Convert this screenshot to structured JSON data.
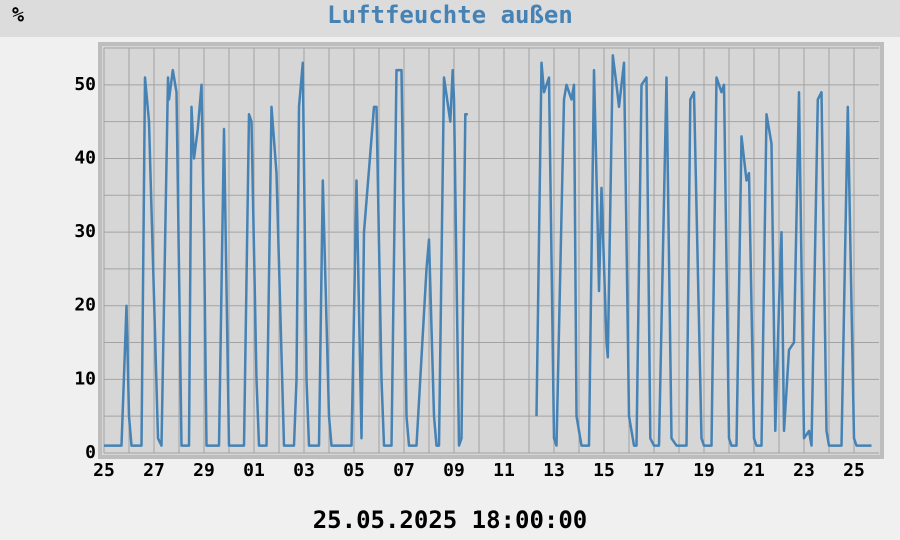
{
  "chart_data": {
    "type": "line",
    "title": "Luftfeuchte außen",
    "y_unit_label": "%",
    "x_label": "25.05.2025 18:00:00",
    "xlim": [
      0,
      31
    ],
    "ylim": [
      0,
      55
    ],
    "xticks": [
      {
        "value": 0,
        "label": "25"
      },
      {
        "value": 2,
        "label": "27"
      },
      {
        "value": 4,
        "label": "29"
      },
      {
        "value": 6,
        "label": "01"
      },
      {
        "value": 8,
        "label": "03"
      },
      {
        "value": 10,
        "label": "05"
      },
      {
        "value": 12,
        "label": "07"
      },
      {
        "value": 14,
        "label": "09"
      },
      {
        "value": 16,
        "label": "11"
      },
      {
        "value": 18,
        "label": "13"
      },
      {
        "value": 20,
        "label": "15"
      },
      {
        "value": 22,
        "label": "17"
      },
      {
        "value": 24,
        "label": "19"
      },
      {
        "value": 26,
        "label": "21"
      },
      {
        "value": 28,
        "label": "23"
      },
      {
        "value": 30,
        "label": "25"
      }
    ],
    "xminor": [
      1,
      3,
      5,
      7,
      9,
      11,
      13,
      15,
      17,
      19,
      21,
      23,
      25,
      27,
      29
    ],
    "yticks": [
      0,
      10,
      20,
      30,
      40,
      50
    ],
    "yminor": [
      5,
      15,
      25,
      35,
      45,
      55
    ],
    "grid": true,
    "series": [
      {
        "color": "#4682b4",
        "x": [
          0,
          0.7,
          0.9,
          1.0,
          1.1,
          1.5,
          1.64,
          1.8,
          2.16,
          2.3,
          2.56,
          2.6,
          2.75,
          2.9,
          3.1,
          3.4,
          3.5,
          3.6,
          3.75,
          3.9,
          4.0,
          4.1,
          4.6,
          4.8,
          5.0,
          5.6,
          5.8,
          5.9,
          6.1,
          6.2,
          6.5,
          6.7,
          6.9,
          7.2,
          7.6,
          7.7,
          7.8,
          7.95,
          8.1,
          8.2,
          8.6,
          8.75,
          9.0,
          9.1,
          9.9,
          10.1,
          10.3,
          10.4,
          10.8,
          10.9,
          11.1,
          11.2,
          11.5,
          11.7,
          11.9,
          12.1,
          12.2,
          12.5,
          12.9,
          13.0,
          13.2,
          13.3,
          13.4,
          13.6,
          13.85,
          13.95,
          14.0,
          14.2,
          14.3,
          14.45,
          14.55,
          16.0,
          17.3,
          17.5,
          17.6,
          17.8,
          18.0,
          18.1,
          18.4,
          18.5,
          18.7,
          18.8,
          18.9,
          19.1,
          19.4,
          19.6,
          19.75,
          19.8,
          19.9,
          20.1,
          20.15,
          20.35,
          20.5,
          20.6,
          20.8,
          21.0,
          21.2,
          21.3,
          21.5,
          21.7,
          21.85,
          22.0,
          22.2,
          22.5,
          22.7,
          22.9,
          23.3,
          23.45,
          23.6,
          23.9,
          24.0,
          24.3,
          24.5,
          24.7,
          24.8,
          25.0,
          25.1,
          25.3,
          25.5,
          25.7,
          25.8,
          26.0,
          26.1,
          26.3,
          26.5,
          26.7,
          26.85,
          27.0,
          27.1,
          27.2,
          27.4,
          27.6,
          27.8,
          28.0,
          28.2,
          28.3,
          28.55,
          28.7,
          28.9,
          29.0,
          29.5,
          29.75,
          30.0,
          30.1,
          30.7
        ],
        "values": [
          1,
          1,
          20,
          5,
          1,
          1,
          51,
          45,
          2,
          1,
          51,
          48,
          52,
          49,
          1,
          1,
          47,
          40,
          44,
          50,
          30,
          1,
          1,
          44,
          1,
          1,
          46,
          45,
          10,
          1,
          1,
          47,
          38,
          1,
          1,
          10,
          47,
          53,
          10,
          1,
          1,
          37,
          5,
          1,
          1,
          37,
          2,
          30,
          47,
          47,
          10,
          1,
          1,
          52,
          52,
          5,
          1,
          1,
          25,
          29,
          5,
          1,
          1,
          51,
          45,
          52,
          48,
          1,
          2,
          46,
          46,
          null,
          5,
          53,
          49,
          51,
          2,
          1,
          48,
          50,
          48,
          50,
          5,
          1,
          1,
          52,
          30,
          22,
          36,
          15,
          13,
          54,
          50,
          47,
          53,
          5,
          1,
          1,
          50,
          51,
          2,
          1,
          1,
          51,
          2,
          1,
          1,
          48,
          49,
          2,
          1,
          1,
          51,
          49,
          50,
          2,
          1,
          1,
          43,
          37,
          38,
          2,
          1,
          1,
          46,
          42,
          3,
          20,
          30,
          3,
          14,
          15,
          49,
          2,
          3,
          1,
          48,
          49,
          3,
          1,
          1,
          47,
          2,
          1,
          1
        ]
      }
    ]
  }
}
